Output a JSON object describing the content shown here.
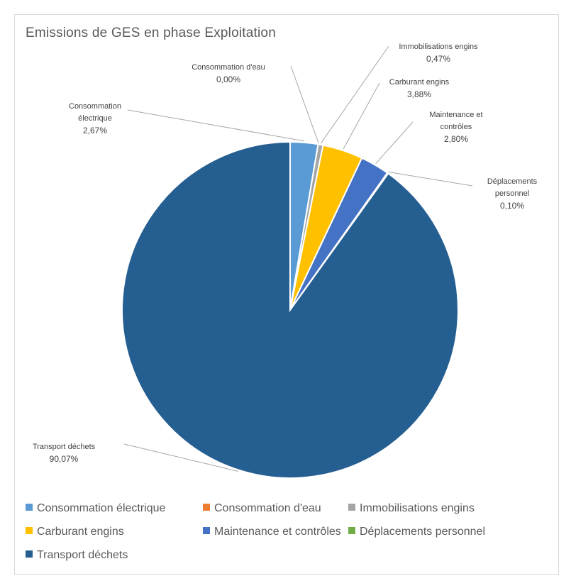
{
  "chart_data": {
    "type": "pie",
    "title": "Emissions de GES en phase Exploitation",
    "slices": [
      {
        "label": "Consommation électrique",
        "label_lines": [
          "Consommation",
          "électrique"
        ],
        "value": 2.67,
        "value_label": "2,67%",
        "color": "#5b9bd5"
      },
      {
        "label": "Consommation d'eau",
        "label_lines": [
          "Consommation d'eau"
        ],
        "value": 0.0,
        "value_label": "0,00%",
        "color": "#ed7d31"
      },
      {
        "label": "Immobilisations engins",
        "label_lines": [
          "Immobilisations engins"
        ],
        "value": 0.47,
        "value_label": "0,47%",
        "color": "#a5a5a5"
      },
      {
        "label": "Carburant engins",
        "label_lines": [
          "Carburant engins"
        ],
        "value": 3.88,
        "value_label": "3,88%",
        "color": "#ffc000"
      },
      {
        "label": "Maintenance et contrôles",
        "label_lines": [
          "Maintenance et",
          "contrôles"
        ],
        "value": 2.8,
        "value_label": "2,80%",
        "color": "#4472c4"
      },
      {
        "label": "Déplacements personnel",
        "label_lines": [
          "Déplacements",
          "personnel"
        ],
        "value": 0.1,
        "value_label": "0,10%",
        "color": "#70ad47"
      },
      {
        "label": "Transport déchets",
        "label_lines": [
          "Transport déchets"
        ],
        "value": 90.07,
        "value_label": "90,07%",
        "color": "#255e91"
      }
    ],
    "legend_position": "bottom"
  }
}
